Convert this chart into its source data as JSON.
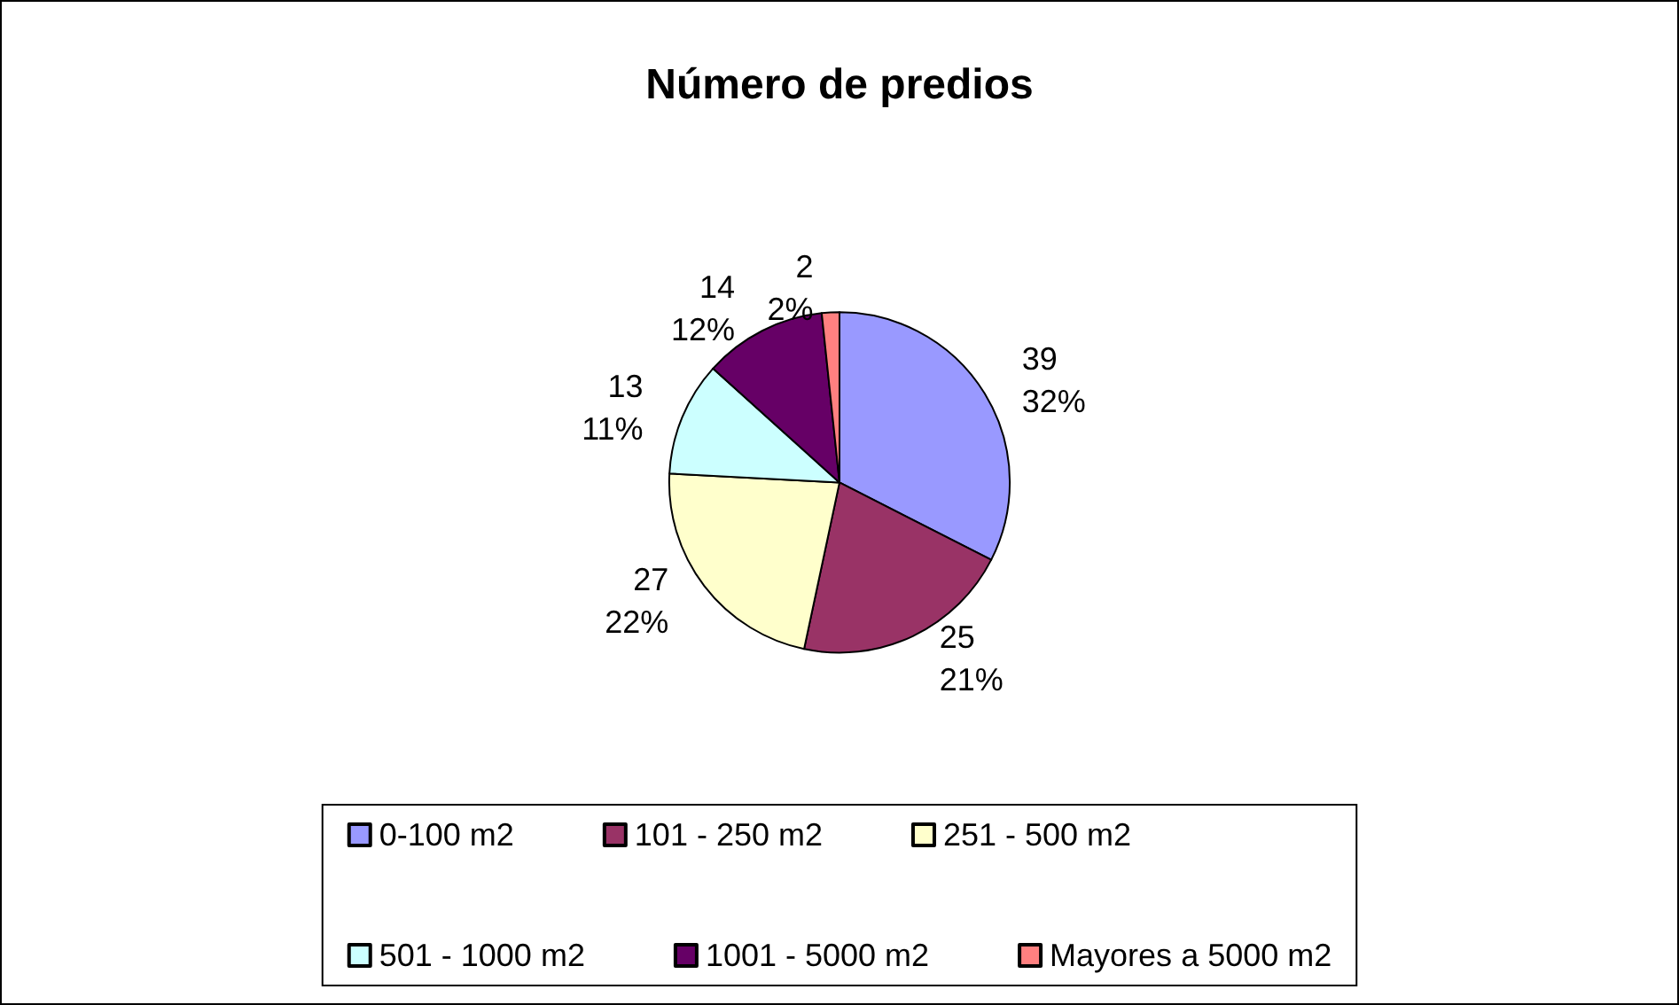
{
  "chart_data": {
    "type": "pie",
    "title": "Número de predios",
    "categories": [
      "0-100 m2",
      "101 - 250 m2",
      "251 - 500 m2",
      "501 - 1000 m2",
      "1001 - 5000 m2",
      "Mayores a 5000 m2"
    ],
    "values": [
      39,
      25,
      27,
      13,
      14,
      2
    ],
    "colors": [
      "#9999ff",
      "#993366",
      "#ffffcc",
      "#ccffff",
      "#660066",
      "#ff8080"
    ],
    "value_labels": [
      "39\n32%",
      "25\n21%",
      "27\n22%",
      "13\n11%",
      "14\n12%",
      "2\n2%"
    ],
    "legend": "bottom"
  }
}
